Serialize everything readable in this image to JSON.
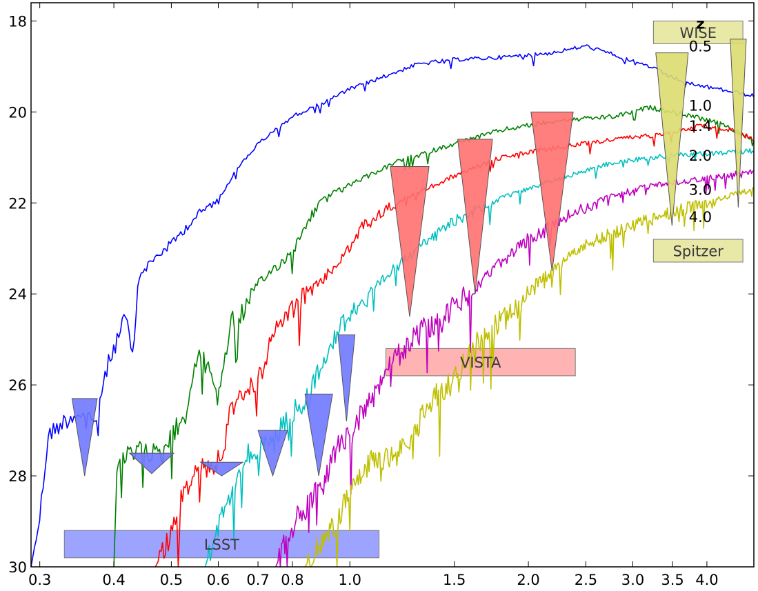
{
  "chart_data": {
    "type": "line",
    "title": "",
    "xlabel": "",
    "ylabel": "",
    "x_scale": "log",
    "y_inverted": true,
    "xlim": [
      0.29,
      4.8
    ],
    "ylim": [
      30,
      17.6
    ],
    "grid": false,
    "x_tick_labels": [
      "0.3",
      "0.4",
      "0.5",
      "0.6",
      "0.7",
      "0.8",
      "1.0",
      "1.5",
      "2.0",
      "2.5",
      "3.0",
      "3.5",
      "4.0"
    ],
    "x_tick_values": [
      0.3,
      0.4,
      0.5,
      0.6,
      0.7,
      0.8,
      1.0,
      1.5,
      2.0,
      2.5,
      3.0,
      3.5,
      4.0
    ],
    "y_tick_labels": [
      "18",
      "20",
      "22",
      "24",
      "26",
      "28",
      "30"
    ],
    "y_tick_values": [
      18,
      20,
      22,
      24,
      26,
      28,
      30
    ],
    "legend_title": "z",
    "series": [
      {
        "name": "0.5",
        "color": "#0000ff",
        "noise": 0.25,
        "points": [
          [
            0.29,
            30.0
          ],
          [
            0.3,
            28.9
          ],
          [
            0.31,
            27.1
          ],
          [
            0.33,
            26.8
          ],
          [
            0.35,
            26.6
          ],
          [
            0.37,
            26.9
          ],
          [
            0.39,
            25.6
          ],
          [
            0.41,
            24.8
          ],
          [
            0.42,
            24.5
          ],
          [
            0.43,
            25.5
          ],
          [
            0.44,
            23.6
          ],
          [
            0.47,
            23.2
          ],
          [
            0.5,
            22.9
          ],
          [
            0.55,
            22.3
          ],
          [
            0.6,
            21.9
          ],
          [
            0.65,
            21.2
          ],
          [
            0.7,
            20.7
          ],
          [
            0.8,
            20.1
          ],
          [
            0.9,
            19.8
          ],
          [
            1.0,
            19.5
          ],
          [
            1.1,
            19.3
          ],
          [
            1.3,
            18.95
          ],
          [
            1.5,
            18.85
          ],
          [
            1.8,
            18.8
          ],
          [
            2.2,
            18.7
          ],
          [
            2.5,
            18.55
          ],
          [
            2.8,
            18.75
          ],
          [
            3.2,
            19.0
          ],
          [
            3.5,
            19.25
          ],
          [
            3.8,
            19.4
          ],
          [
            4.2,
            19.5
          ],
          [
            4.8,
            19.65
          ]
        ]
      },
      {
        "name": "1.0",
        "color": "#008000",
        "noise": 0.3,
        "points": [
          [
            0.4,
            30.0
          ],
          [
            0.405,
            27.8
          ],
          [
            0.42,
            27.6
          ],
          [
            0.45,
            27.4
          ],
          [
            0.48,
            27.6
          ],
          [
            0.5,
            27.1
          ],
          [
            0.53,
            26.6
          ],
          [
            0.55,
            25.4
          ],
          [
            0.58,
            25.6
          ],
          [
            0.6,
            26.3
          ],
          [
            0.63,
            24.6
          ],
          [
            0.66,
            24.4
          ],
          [
            0.7,
            23.8
          ],
          [
            0.75,
            23.4
          ],
          [
            0.8,
            23.1
          ],
          [
            0.85,
            22.4
          ],
          [
            0.9,
            21.9
          ],
          [
            1.0,
            21.6
          ],
          [
            1.2,
            21.1
          ],
          [
            1.5,
            20.7
          ],
          [
            1.8,
            20.4
          ],
          [
            2.2,
            20.2
          ],
          [
            2.8,
            20.1
          ],
          [
            3.2,
            19.9
          ],
          [
            3.8,
            20.1
          ],
          [
            4.3,
            20.3
          ],
          [
            4.8,
            20.6
          ]
        ]
      },
      {
        "name": "1.4",
        "color": "#ff0000",
        "noise": 0.3,
        "points": [
          [
            0.47,
            30.0
          ],
          [
            0.5,
            29.3
          ],
          [
            0.52,
            28.5
          ],
          [
            0.55,
            27.9
          ],
          [
            0.58,
            27.8
          ],
          [
            0.61,
            27.6
          ],
          [
            0.63,
            26.4
          ],
          [
            0.66,
            26.2
          ],
          [
            0.7,
            25.9
          ],
          [
            0.75,
            24.8
          ],
          [
            0.8,
            24.3
          ],
          [
            0.9,
            23.7
          ],
          [
            1.0,
            23.0
          ],
          [
            1.05,
            22.5
          ],
          [
            1.2,
            22.0
          ],
          [
            1.5,
            21.4
          ],
          [
            1.8,
            21.0
          ],
          [
            2.2,
            20.8
          ],
          [
            2.8,
            20.6
          ],
          [
            3.3,
            20.5
          ],
          [
            3.9,
            20.3
          ],
          [
            4.4,
            20.4
          ],
          [
            4.8,
            20.6
          ]
        ]
      },
      {
        "name": "2.0",
        "color": "#00bfbf",
        "noise": 0.3,
        "points": [
          [
            0.57,
            30.0
          ],
          [
            0.6,
            29.1
          ],
          [
            0.63,
            28.4
          ],
          [
            0.66,
            27.6
          ],
          [
            0.7,
            27.4
          ],
          [
            0.75,
            27.1
          ],
          [
            0.8,
            26.6
          ],
          [
            0.85,
            26.3
          ],
          [
            0.9,
            25.4
          ],
          [
            0.95,
            24.9
          ],
          [
            1.0,
            24.4
          ],
          [
            1.1,
            23.9
          ],
          [
            1.2,
            23.4
          ],
          [
            1.3,
            23.0
          ],
          [
            1.5,
            22.4
          ],
          [
            1.8,
            21.9
          ],
          [
            2.2,
            21.5
          ],
          [
            2.8,
            21.1
          ],
          [
            3.5,
            20.95
          ],
          [
            4.2,
            20.9
          ],
          [
            4.8,
            20.85
          ]
        ]
      },
      {
        "name": "3.0",
        "color": "#bf00bf",
        "noise": 0.35,
        "points": [
          [
            0.75,
            30.0
          ],
          [
            0.8,
            29.1
          ],
          [
            0.85,
            28.6
          ],
          [
            0.9,
            28.2
          ],
          [
            0.95,
            27.4
          ],
          [
            1.0,
            27.1
          ],
          [
            1.05,
            26.6
          ],
          [
            1.1,
            26.3
          ],
          [
            1.15,
            25.6
          ],
          [
            1.2,
            25.4
          ],
          [
            1.3,
            24.9
          ],
          [
            1.4,
            24.6
          ],
          [
            1.6,
            24.0
          ],
          [
            1.8,
            23.3
          ],
          [
            2.0,
            22.8
          ],
          [
            2.4,
            22.2
          ],
          [
            2.8,
            21.8
          ],
          [
            3.3,
            21.6
          ],
          [
            3.8,
            21.5
          ],
          [
            4.3,
            21.4
          ],
          [
            4.8,
            21.3
          ]
        ]
      },
      {
        "name": "4.0",
        "color": "#bfbf00",
        "noise": 0.35,
        "points": [
          [
            0.84,
            30.0
          ],
          [
            0.9,
            29.4
          ],
          [
            0.95,
            29.0
          ],
          [
            1.0,
            28.4
          ],
          [
            1.1,
            27.6
          ],
          [
            1.2,
            27.6
          ],
          [
            1.3,
            26.9
          ],
          [
            1.4,
            26.2
          ],
          [
            1.5,
            25.9
          ],
          [
            1.6,
            25.2
          ],
          [
            1.7,
            24.9
          ],
          [
            1.8,
            24.6
          ],
          [
            1.9,
            24.4
          ],
          [
            2.0,
            23.9
          ],
          [
            2.2,
            23.5
          ],
          [
            2.5,
            22.9
          ],
          [
            3.0,
            22.5
          ],
          [
            3.5,
            22.2
          ],
          [
            4.0,
            22.0
          ],
          [
            4.5,
            21.8
          ],
          [
            4.8,
            21.7
          ]
        ]
      }
    ],
    "series_label_positions": [
      {
        "name": "0.5",
        "x": 3.9,
        "y": 18.55
      },
      {
        "name": "1.0",
        "x": 3.9,
        "y": 19.85
      },
      {
        "name": "1.4",
        "x": 3.9,
        "y": 20.3
      },
      {
        "name": "2.0",
        "x": 3.9,
        "y": 20.95
      },
      {
        "name": "3.0",
        "x": 3.9,
        "y": 21.7
      },
      {
        "name": "4.0",
        "x": 3.9,
        "y": 22.3
      }
    ],
    "legend_title_position": {
      "x": 3.9,
      "y": 18.05
    },
    "survey_bands": [
      {
        "name": "LSST",
        "color": "#7b85ff",
        "x0": 0.33,
        "x1": 1.12,
        "y_top": 29.2,
        "y_bottom": 29.8
      },
      {
        "name": "VISTA",
        "color": "#ff9a9a",
        "x0": 1.15,
        "x1": 2.4,
        "y_top": 25.2,
        "y_bottom": 25.8
      },
      {
        "name": "WISE",
        "color": "#e0e08a",
        "x0": 3.25,
        "x1": 4.6,
        "y_top": 18.0,
        "y_bottom": 18.5
      },
      {
        "name": "Spitzer",
        "color": "#e0e08a",
        "x0": 3.25,
        "x1": 4.6,
        "y_top": 22.8,
        "y_bottom": 23.3
      }
    ],
    "depth_markers": [
      {
        "survey": "LSST",
        "color": "#6f78ff",
        "x0": 0.34,
        "x1": 0.375,
        "y_top": 26.3,
        "y_tip": 28.0
      },
      {
        "survey": "LSST",
        "color": "#6f78ff",
        "x0": 0.425,
        "x1": 0.505,
        "y_top": 27.5,
        "y_tip": 27.95
      },
      {
        "survey": "LSST",
        "color": "#6f78ff",
        "x0": 0.56,
        "x1": 0.66,
        "y_top": 27.7,
        "y_tip": 28.0
      },
      {
        "survey": "LSST",
        "color": "#6f78ff",
        "x0": 0.7,
        "x1": 0.785,
        "y_top": 27.0,
        "y_tip": 28.0
      },
      {
        "survey": "LSST",
        "color": "#6f78ff",
        "x0": 0.84,
        "x1": 0.935,
        "y_top": 26.2,
        "y_tip": 28.0
      },
      {
        "survey": "LSST",
        "color": "#6f78ff",
        "x0": 0.955,
        "x1": 1.02,
        "y_top": 24.9,
        "y_tip": 26.8
      },
      {
        "survey": "VISTA",
        "color": "#ff7070",
        "x0": 1.17,
        "x1": 1.36,
        "y_top": 21.2,
        "y_tip": 24.5
      },
      {
        "survey": "VISTA",
        "color": "#ff7070",
        "x0": 1.52,
        "x1": 1.74,
        "y_top": 20.6,
        "y_tip": 24.0
      },
      {
        "survey": "VISTA",
        "color": "#ff7070",
        "x0": 2.02,
        "x1": 2.38,
        "y_top": 20.0,
        "y_tip": 23.5
      },
      {
        "survey": "WISE",
        "color": "#dcdc70",
        "x0": 3.28,
        "x1": 3.72,
        "y_top": 18.7,
        "y_tip": 22.5
      },
      {
        "survey": "WISE",
        "color": "#dcdc70",
        "x0": 4.38,
        "x1": 4.66,
        "y_top": 18.4,
        "y_tip": 22.1
      }
    ]
  }
}
